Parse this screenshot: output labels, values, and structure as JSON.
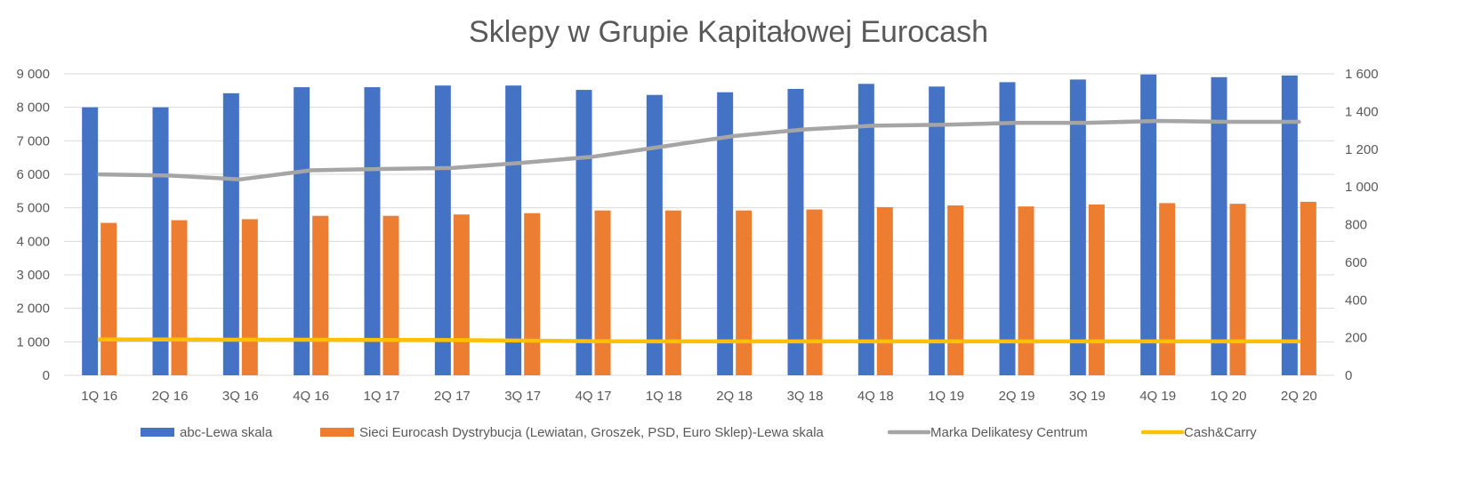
{
  "chart_data": {
    "type": "bar",
    "title": "Sklepy w Grupie Kapitałowej Eurocash",
    "categories": [
      "1Q 16",
      "2Q 16",
      "3Q 16",
      "4Q 16",
      "1Q 17",
      "2Q 17",
      "3Q 17",
      "4Q 17",
      "1Q 18",
      "2Q 18",
      "3Q 18",
      "4Q 18",
      "1Q 19",
      "2Q 19",
      "3Q 19",
      "4Q 19",
      "1Q 20",
      "2Q 20"
    ],
    "y_left": {
      "ylim": [
        0,
        9000
      ],
      "ticks": [
        "0",
        "1 000",
        "2 000",
        "3 000",
        "4 000",
        "5 000",
        "6 000",
        "7 000",
        "8 000",
        "9 000"
      ]
    },
    "y_right": {
      "ylim": [
        0,
        1600
      ],
      "ticks": [
        "0",
        "200",
        "400",
        "600",
        "800",
        "1 000",
        "1 200",
        "1 400",
        "1 600"
      ]
    },
    "grid": true,
    "legend_position": "bottom",
    "series": [
      {
        "name": "abc-Lewa skala",
        "kind": "bar",
        "axis": "left",
        "color": "#4472C4",
        "values": [
          8000,
          8000,
          8420,
          8600,
          8600,
          8650,
          8650,
          8520,
          8370,
          8450,
          8550,
          8700,
          8620,
          8750,
          8830,
          8980,
          8900,
          8950
        ]
      },
      {
        "name": "Sieci Eurocash Dystrybucja (Lewiatan, Groszek, PSD, Euro Sklep)-Lewa skala",
        "kind": "bar",
        "axis": "left",
        "color": "#ED7D31",
        "values": [
          4550,
          4630,
          4660,
          4760,
          4760,
          4800,
          4840,
          4920,
          4920,
          4920,
          4950,
          5020,
          5070,
          5040,
          5100,
          5140,
          5120,
          5180
        ]
      },
      {
        "name": "Marka Delikatesy Centrum",
        "kind": "line",
        "axis": "right",
        "color": "#A5A5A5",
        "values": [
          1066,
          1060,
          1040,
          1088,
          1095,
          1100,
          1128,
          1160,
          1215,
          1270,
          1305,
          1325,
          1330,
          1340,
          1340,
          1350,
          1345,
          1345
        ]
      },
      {
        "name": "Cash&Carry",
        "kind": "line",
        "axis": "right",
        "color": "#FFC000",
        "values": [
          190,
          190,
          189,
          189,
          188,
          187,
          184,
          181,
          180,
          180,
          180,
          180,
          180,
          180,
          180,
          180,
          180,
          180
        ]
      }
    ]
  }
}
